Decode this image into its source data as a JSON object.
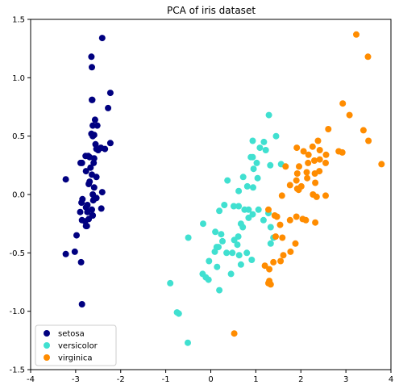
{
  "chart_data": {
    "type": "scatter",
    "title": "PCA of iris dataset",
    "xlabel": "",
    "ylabel": "",
    "xlim": [
      -4,
      4
    ],
    "ylim": [
      -1.5,
      1.5
    ],
    "x_ticks": [
      -4,
      -3,
      -2,
      -1,
      0,
      1,
      2,
      3,
      4
    ],
    "y_ticks": [
      -1.5,
      -1.0,
      -0.5,
      0.0,
      0.5,
      1.0,
      1.5
    ],
    "x_tick_labels": [
      "-4",
      "-3",
      "-2",
      "-1",
      "0",
      "1",
      "2",
      "3",
      "4"
    ],
    "y_tick_labels": [
      "-1.5",
      "-1.0",
      "-0.5",
      "0.0",
      "0.5",
      "1.0",
      "1.5"
    ],
    "grid": false,
    "legend_position": "lower-left",
    "series": [
      {
        "name": "setosa",
        "color": "#000080",
        "points": [
          [
            -2.41,
            1.34
          ],
          [
            -2.65,
            1.18
          ],
          [
            -2.64,
            1.09
          ],
          [
            -2.64,
            0.81
          ],
          [
            -2.63,
            0.81
          ],
          [
            -2.23,
            0.87
          ],
          [
            -2.28,
            0.74
          ],
          [
            -2.57,
            0.64
          ],
          [
            -2.62,
            0.59
          ],
          [
            -2.52,
            0.59
          ],
          [
            -2.65,
            0.52
          ],
          [
            -2.59,
            0.51
          ],
          [
            -2.62,
            0.5
          ],
          [
            -2.56,
            0.43
          ],
          [
            -2.44,
            0.4
          ],
          [
            -2.54,
            0.39
          ],
          [
            -2.5,
            0.38
          ],
          [
            -2.23,
            0.44
          ],
          [
            -2.35,
            0.39
          ],
          [
            -2.72,
            0.33
          ],
          [
            -2.78,
            0.33
          ],
          [
            -2.69,
            0.32
          ],
          [
            -2.59,
            0.31
          ],
          [
            -2.86,
            0.27
          ],
          [
            -2.89,
            0.27
          ],
          [
            -2.6,
            0.27
          ],
          [
            -2.77,
            0.2
          ],
          [
            -2.64,
            0.17
          ],
          [
            -2.54,
            0.15
          ],
          [
            -2.69,
            0.11
          ],
          [
            -2.71,
            0.09
          ],
          [
            -3.22,
            0.13
          ],
          [
            -2.59,
            0.06
          ],
          [
            -2.41,
            0.02
          ],
          [
            -2.62,
            0.0
          ],
          [
            -2.54,
            -0.03
          ],
          [
            -2.85,
            -0.04
          ],
          [
            -2.87,
            -0.07
          ],
          [
            -2.74,
            -0.09
          ],
          [
            -2.43,
            -0.12
          ],
          [
            -2.9,
            -0.15
          ],
          [
            -2.64,
            -0.13
          ],
          [
            -2.74,
            -0.15
          ],
          [
            -2.63,
            -0.18
          ],
          [
            -2.62,
            -0.18
          ],
          [
            -2.71,
            -0.21
          ],
          [
            -2.86,
            -0.22
          ],
          [
            -2.79,
            -0.23
          ],
          [
            -2.77,
            -0.27
          ],
          [
            -2.75,
            -0.27
          ],
          [
            -2.98,
            -0.35
          ],
          [
            -3.02,
            -0.49
          ],
          [
            -3.22,
            -0.51
          ],
          [
            -2.88,
            -0.58
          ],
          [
            -2.86,
            -0.94
          ],
          [
            -2.77,
            -0.11
          ],
          [
            -2.67,
            0.23
          ],
          [
            -2.61,
            -0.05
          ]
        ]
      },
      {
        "name": "versicolor",
        "color": "#40E0D0",
        "points": [
          [
            1.29,
            0.68
          ],
          [
            0.93,
            0.46
          ],
          [
            1.45,
            0.5
          ],
          [
            1.18,
            0.45
          ],
          [
            1.22,
            0.38
          ],
          [
            1.09,
            0.4
          ],
          [
            0.93,
            0.32
          ],
          [
            0.89,
            0.32
          ],
          [
            1.02,
            0.27
          ],
          [
            0.95,
            0.22
          ],
          [
            1.32,
            0.25
          ],
          [
            1.56,
            0.26
          ],
          [
            0.72,
            0.15
          ],
          [
            0.37,
            0.12
          ],
          [
            1.04,
            0.14
          ],
          [
            0.62,
            0.03
          ],
          [
            0.94,
            0.06
          ],
          [
            0.81,
            0.07
          ],
          [
            0.62,
            -0.1
          ],
          [
            0.51,
            -0.1
          ],
          [
            0.3,
            -0.09
          ],
          [
            0.75,
            -0.13
          ],
          [
            0.19,
            -0.14
          ],
          [
            0.84,
            -0.13
          ],
          [
            1.06,
            -0.13
          ],
          [
            1.28,
            -0.16
          ],
          [
            0.93,
            -0.17
          ],
          [
            0.84,
            -0.2
          ],
          [
            1.17,
            -0.22
          ],
          [
            0.67,
            -0.25
          ],
          [
            -0.17,
            -0.25
          ],
          [
            0.71,
            -0.28
          ],
          [
            1.33,
            -0.28
          ],
          [
            0.1,
            -0.32
          ],
          [
            0.23,
            -0.34
          ],
          [
            -0.5,
            -0.37
          ],
          [
            0.26,
            -0.4
          ],
          [
            0.61,
            -0.36
          ],
          [
            1.39,
            -0.37
          ],
          [
            0.13,
            -0.45
          ],
          [
            0.52,
            -0.39
          ],
          [
            0.17,
            -0.45
          ],
          [
            0.59,
            -0.43
          ],
          [
            0.8,
            -0.5
          ],
          [
            1.33,
            -0.42
          ],
          [
            0.09,
            -0.49
          ],
          [
            0.35,
            -0.5
          ],
          [
            0.48,
            -0.5
          ],
          [
            0.63,
            -0.52
          ],
          [
            0.91,
            -0.56
          ],
          [
            -0.04,
            -0.57
          ],
          [
            0.14,
            -0.62
          ],
          [
            0.67,
            -0.6
          ],
          [
            -0.18,
            -0.68
          ],
          [
            -0.11,
            -0.71
          ],
          [
            -0.05,
            -0.73
          ],
          [
            0.45,
            -0.68
          ],
          [
            0.19,
            -0.82
          ],
          [
            -0.9,
            -0.76
          ],
          [
            -0.75,
            -1.01
          ],
          [
            -0.71,
            -1.02
          ],
          [
            -0.51,
            -1.27
          ]
        ]
      },
      {
        "name": "virginica",
        "color": "#FF8C00",
        "points": [
          [
            3.23,
            1.37
          ],
          [
            3.49,
            1.18
          ],
          [
            2.93,
            0.78
          ],
          [
            3.08,
            0.68
          ],
          [
            3.39,
            0.55
          ],
          [
            2.61,
            0.56
          ],
          [
            3.5,
            0.46
          ],
          [
            2.38,
            0.46
          ],
          [
            2.26,
            0.41
          ],
          [
            1.91,
            0.4
          ],
          [
            2.06,
            0.37
          ],
          [
            2.42,
            0.38
          ],
          [
            2.17,
            0.34
          ],
          [
            2.84,
            0.37
          ],
          [
            2.92,
            0.36
          ],
          [
            2.56,
            0.34
          ],
          [
            2.3,
            0.29
          ],
          [
            2.16,
            0.27
          ],
          [
            2.42,
            0.3
          ],
          [
            1.96,
            0.24
          ],
          [
            1.66,
            0.24
          ],
          [
            3.79,
            0.26
          ],
          [
            2.55,
            0.27
          ],
          [
            2.31,
            0.18
          ],
          [
            2.13,
            0.19
          ],
          [
            1.92,
            0.18
          ],
          [
            2.41,
            0.2
          ],
          [
            1.9,
            0.12
          ],
          [
            2.32,
            0.1
          ],
          [
            2.14,
            0.14
          ],
          [
            1.76,
            0.08
          ],
          [
            2.01,
            0.07
          ],
          [
            1.92,
            0.05
          ],
          [
            1.95,
            0.04
          ],
          [
            2.27,
            0.0
          ],
          [
            1.58,
            -0.01
          ],
          [
            2.55,
            -0.01
          ],
          [
            2.35,
            -0.02
          ],
          [
            1.28,
            -0.13
          ],
          [
            1.42,
            -0.18
          ],
          [
            1.47,
            -0.19
          ],
          [
            1.9,
            -0.19
          ],
          [
            2.04,
            -0.21
          ],
          [
            2.11,
            -0.22
          ],
          [
            1.76,
            -0.22
          ],
          [
            2.32,
            -0.24
          ],
          [
            1.54,
            -0.26
          ],
          [
            1.44,
            -0.36
          ],
          [
            1.88,
            -0.42
          ],
          [
            1.77,
            -0.49
          ],
          [
            1.55,
            -0.57
          ],
          [
            1.39,
            -0.58
          ],
          [
            1.61,
            -0.52
          ],
          [
            1.2,
            -0.61
          ],
          [
            1.3,
            -0.64
          ],
          [
            1.3,
            -0.74
          ],
          [
            1.33,
            -0.77
          ],
          [
            1.28,
            -0.76
          ],
          [
            0.52,
            -1.19
          ],
          [
            1.59,
            -0.37
          ]
        ]
      }
    ]
  }
}
